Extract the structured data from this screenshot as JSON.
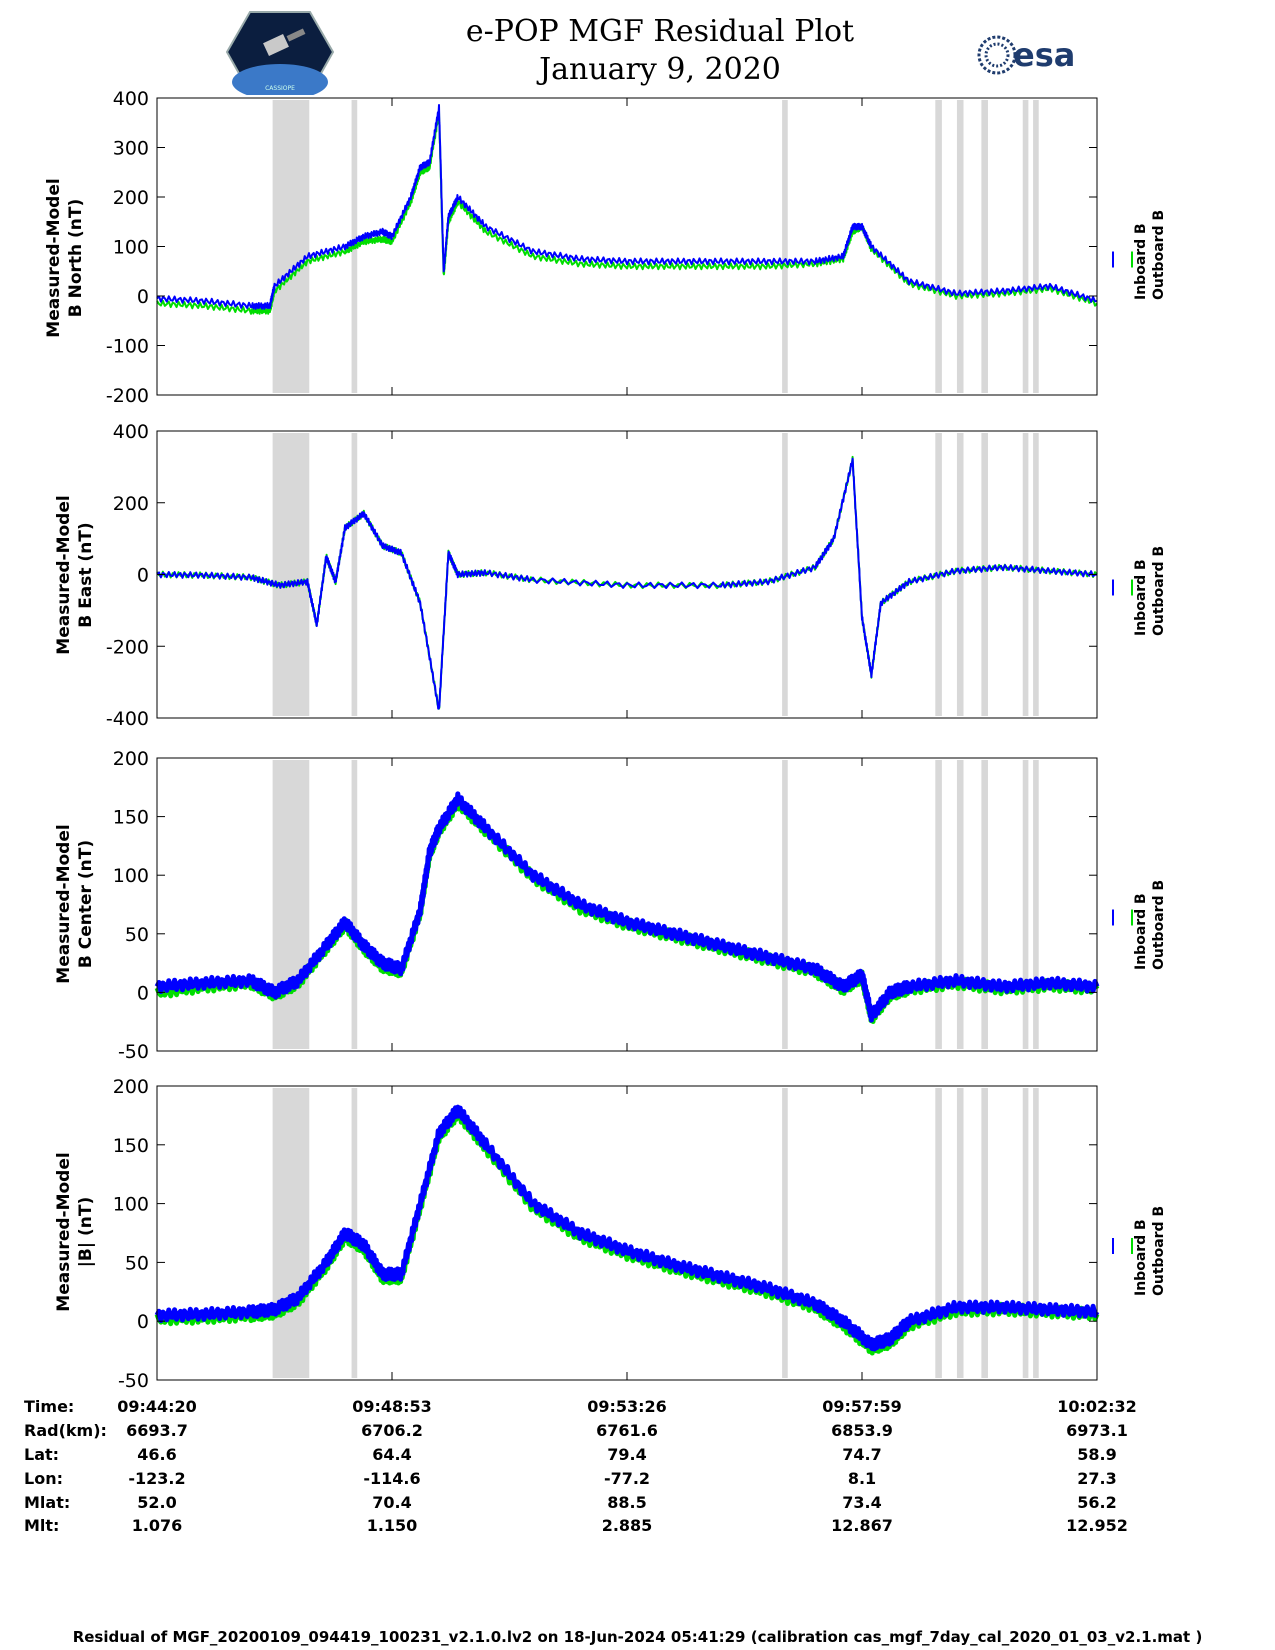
{
  "header": {
    "title_line1": "e-POP MGF Residual Plot",
    "title_line2": "January 9, 2020",
    "left_logo": "cassiope-mission-logo",
    "right_logo": "esa-logo",
    "right_logo_text": "esa",
    "left_logo_caption": "CASSIOPE"
  },
  "colors": {
    "inboard": "#0000ff",
    "outboard": "#00dd00",
    "shade": "#d8d8d8"
  },
  "legend": {
    "inboard": "Inboard B",
    "outboard": "Outboard B"
  },
  "shaded_intervals_fraction_of_time_axis": [
    [
      0.123,
      0.162
    ],
    [
      0.207,
      0.213
    ],
    [
      0.665,
      0.671
    ],
    [
      0.828,
      0.835
    ],
    [
      0.851,
      0.858
    ],
    [
      0.877,
      0.884
    ],
    [
      0.921,
      0.927
    ],
    [
      0.932,
      0.938
    ]
  ],
  "chart_data": [
    {
      "type": "line",
      "ylabel_line1": "Measured-Model",
      "ylabel_line2": "B North (nT)",
      "ylim": [
        -200,
        400
      ],
      "yticks": [
        "400",
        "300",
        "200",
        "100",
        "0",
        "-100",
        "-200"
      ],
      "ytick_values": [
        400,
        300,
        200,
        100,
        0,
        -100,
        -200
      ],
      "x": [
        0,
        0.05,
        0.1,
        0.12,
        0.125,
        0.16,
        0.2,
        0.22,
        0.24,
        0.25,
        0.27,
        0.28,
        0.29,
        0.3,
        0.305,
        0.31,
        0.32,
        0.35,
        0.4,
        0.45,
        0.5,
        0.55,
        0.6,
        0.65,
        0.7,
        0.73,
        0.74,
        0.75,
        0.76,
        0.8,
        0.85,
        0.9,
        0.95,
        1.0
      ],
      "series": [
        {
          "name": "Inboard B",
          "values": [
            -5,
            -10,
            -20,
            -20,
            20,
            80,
            100,
            120,
            130,
            120,
            200,
            260,
            270,
            380,
            50,
            160,
            200,
            140,
            90,
            75,
            70,
            70,
            70,
            70,
            70,
            80,
            140,
            140,
            100,
            30,
            5,
            10,
            20,
            -10
          ]
        },
        {
          "name": "Outboard B",
          "values": [
            -15,
            -20,
            -30,
            -30,
            10,
            70,
            90,
            110,
            115,
            110,
            190,
            250,
            260,
            370,
            40,
            150,
            190,
            130,
            80,
            65,
            60,
            60,
            60,
            60,
            65,
            75,
            130,
            140,
            95,
            25,
            0,
            5,
            15,
            -15
          ]
        }
      ]
    },
    {
      "type": "line",
      "ylabel_line1": "Measured-Model",
      "ylabel_line2": "B East (nT)",
      "ylim": [
        -400,
        400
      ],
      "yticks": [
        "400",
        "200",
        "0",
        "-200",
        "-400"
      ],
      "ytick_values": [
        400,
        200,
        0,
        -200,
        -400
      ],
      "x": [
        0,
        0.05,
        0.1,
        0.13,
        0.16,
        0.17,
        0.18,
        0.19,
        0.2,
        0.22,
        0.24,
        0.26,
        0.28,
        0.3,
        0.31,
        0.32,
        0.35,
        0.4,
        0.5,
        0.6,
        0.65,
        0.7,
        0.72,
        0.74,
        0.75,
        0.76,
        0.77,
        0.8,
        0.85,
        0.9,
        0.95,
        1.0
      ],
      "series": [
        {
          "name": "Inboard B",
          "values": [
            0,
            -2,
            -8,
            -30,
            -20,
            -140,
            50,
            -20,
            130,
            170,
            80,
            60,
            -80,
            -380,
            60,
            0,
            5,
            -15,
            -30,
            -30,
            -20,
            20,
            100,
            320,
            -120,
            -280,
            -80,
            -20,
            10,
            20,
            10,
            0
          ]
        },
        {
          "name": "Outboard B",
          "values": [
            0,
            -2,
            -8,
            -30,
            -20,
            -140,
            50,
            -20,
            130,
            170,
            80,
            60,
            -80,
            -380,
            60,
            0,
            5,
            -15,
            -30,
            -30,
            -20,
            20,
            100,
            320,
            -120,
            -280,
            -80,
            -20,
            10,
            20,
            10,
            0
          ]
        }
      ]
    },
    {
      "type": "line",
      "ylabel_line1": "Measured-Model",
      "ylabel_line2": "B Center (nT)",
      "ylim": [
        -50,
        200
      ],
      "yticks": [
        "200",
        "150",
        "100",
        "50",
        "0",
        "-50"
      ],
      "ytick_values": [
        200,
        150,
        100,
        50,
        0,
        -50
      ],
      "x": [
        0,
        0.05,
        0.1,
        0.125,
        0.15,
        0.18,
        0.2,
        0.22,
        0.24,
        0.26,
        0.28,
        0.29,
        0.3,
        0.32,
        0.35,
        0.4,
        0.45,
        0.5,
        0.55,
        0.6,
        0.65,
        0.7,
        0.73,
        0.75,
        0.76,
        0.78,
        0.8,
        0.85,
        0.9,
        0.95,
        1.0
      ],
      "series": [
        {
          "name": "Inboard B",
          "values": [
            5,
            8,
            10,
            0,
            10,
            40,
            60,
            40,
            25,
            20,
            70,
            120,
            140,
            165,
            140,
            100,
            75,
            60,
            50,
            40,
            30,
            20,
            5,
            15,
            -20,
            0,
            5,
            10,
            5,
            8,
            5
          ]
        },
        {
          "name": "Outboard B",
          "values": [
            0,
            5,
            8,
            -2,
            8,
            38,
            58,
            38,
            22,
            18,
            68,
            118,
            138,
            162,
            138,
            98,
            72,
            58,
            48,
            38,
            28,
            18,
            3,
            13,
            -22,
            -2,
            3,
            8,
            3,
            6,
            3
          ]
        }
      ]
    },
    {
      "type": "line",
      "ylabel_line1": "Measured-Model",
      "ylabel_line2": "|B| (nT)",
      "ylim": [
        -50,
        200
      ],
      "yticks": [
        "200",
        "150",
        "100",
        "50",
        "0",
        "-50"
      ],
      "ytick_values": [
        200,
        150,
        100,
        50,
        0,
        -50
      ],
      "x": [
        0,
        0.05,
        0.1,
        0.125,
        0.15,
        0.18,
        0.2,
        0.22,
        0.24,
        0.26,
        0.28,
        0.3,
        0.32,
        0.35,
        0.4,
        0.45,
        0.5,
        0.55,
        0.6,
        0.65,
        0.7,
        0.73,
        0.76,
        0.78,
        0.8,
        0.85,
        0.9,
        0.95,
        1.0
      ],
      "series": [
        {
          "name": "Inboard B",
          "values": [
            5,
            6,
            8,
            10,
            20,
            50,
            75,
            65,
            40,
            40,
            100,
            160,
            180,
            150,
            100,
            75,
            60,
            48,
            38,
            28,
            15,
            0,
            -20,
            -15,
            0,
            12,
            12,
            10,
            8
          ]
        },
        {
          "name": "Outboard B",
          "values": [
            2,
            3,
            5,
            7,
            17,
            47,
            72,
            62,
            37,
            37,
            97,
            157,
            177,
            147,
            97,
            72,
            57,
            45,
            35,
            25,
            12,
            -3,
            -23,
            -18,
            -3,
            9,
            10,
            8,
            6
          ]
        }
      ]
    }
  ],
  "table": {
    "labels": [
      "Time:",
      "Rad(km):",
      "Lat:",
      "Lon:",
      "Mlat:",
      "Mlt:"
    ],
    "columns": [
      [
        "09:44:20",
        "6693.7",
        "46.6",
        "-123.2",
        "52.0",
        "1.076"
      ],
      [
        "09:48:53",
        "6706.2",
        "64.4",
        "-114.6",
        "70.4",
        "1.150"
      ],
      [
        "09:53:26",
        "6761.6",
        "79.4",
        "-77.2",
        "88.5",
        "2.885"
      ],
      [
        "09:57:59",
        "6853.9",
        "74.7",
        "8.1",
        "73.4",
        "12.867"
      ],
      [
        "10:02:32",
        "6973.1",
        "58.9",
        "27.3",
        "56.2",
        "12.952"
      ]
    ]
  },
  "footer": "Residual of MGF_20200109_094419_100231_v2.1.0.lv2 on 18-Jun-2024 05:41:29 (calibration cas_mgf_7day_cal_2020_01_03_v2.1.mat )"
}
